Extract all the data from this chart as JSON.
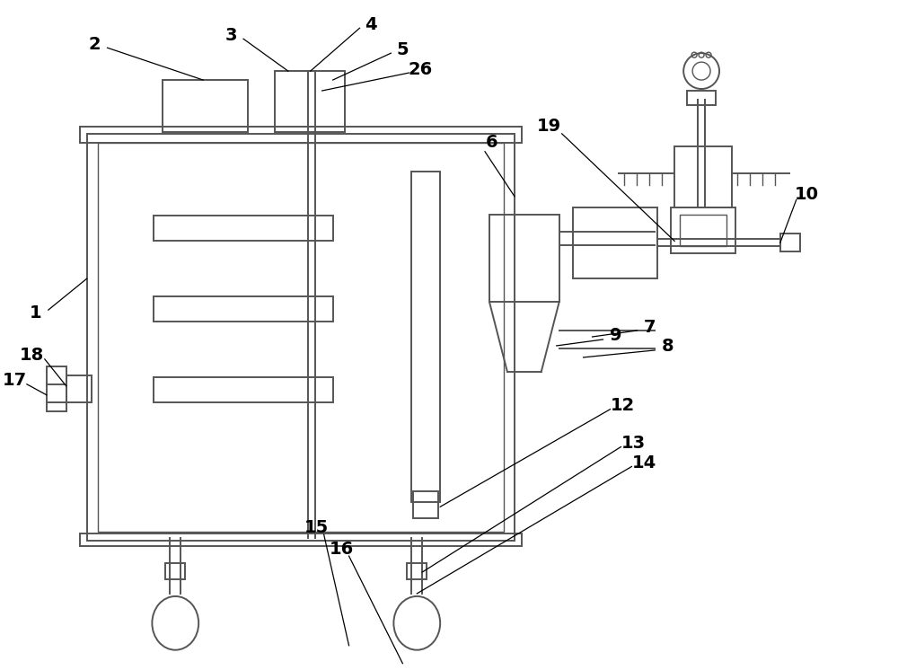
{
  "bg_color": "#ffffff",
  "line_color": "#555555",
  "lw": 1.4,
  "lw_thin": 1.0,
  "fs": 14
}
